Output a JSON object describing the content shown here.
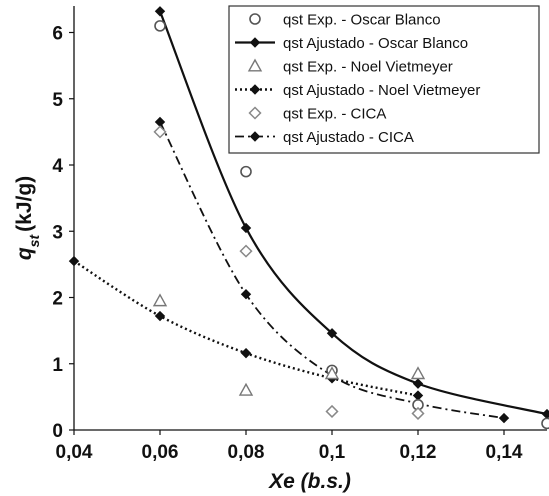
{
  "chart_data": {
    "type": "scatter",
    "xlabel": "Xe (b.s.)",
    "ylabel": "q_st (kJ/g)",
    "xlim": [
      0.04,
      0.15
    ],
    "ylim": [
      0,
      6.4
    ],
    "x_ticks": [
      0.04,
      0.06,
      0.08,
      0.1,
      0.12,
      0.14
    ],
    "x_tick_labels": [
      "0,04",
      "0,06",
      "0,08",
      "0,1",
      "0,12",
      "0,14"
    ],
    "y_ticks": [
      0,
      1,
      2,
      3,
      4,
      5,
      6
    ],
    "y_tick_labels": [
      "0",
      "1",
      "2",
      "3",
      "4",
      "5",
      "6"
    ],
    "grid": false,
    "legend_position": "top-right",
    "series": [
      {
        "name": "qst Exp. - Oscar Blanco",
        "kind": "points",
        "marker": "circle",
        "x": [
          0.06,
          0.08,
          0.1,
          0.12,
          0.15
        ],
        "y": [
          6.1,
          3.9,
          0.9,
          0.38,
          0.1
        ]
      },
      {
        "name": "qst Ajustado - Oscar Blanco",
        "kind": "line",
        "line_style": "solid",
        "marker": "diamond-filled",
        "x": [
          0.06,
          0.08,
          0.1,
          0.12,
          0.15
        ],
        "y": [
          6.32,
          3.05,
          1.46,
          0.7,
          0.24
        ]
      },
      {
        "name": "qst Exp. - Noel Vietmeyer",
        "kind": "points",
        "marker": "triangle",
        "x": [
          0.06,
          0.08,
          0.1,
          0.12
        ],
        "y": [
          1.95,
          0.6,
          0.85,
          0.85
        ]
      },
      {
        "name": "qst Ajustado - Noel Vietmeyer",
        "kind": "line",
        "line_style": "dotted",
        "marker": "diamond-filled",
        "x": [
          0.04,
          0.06,
          0.08,
          0.1,
          0.12
        ],
        "y": [
          2.55,
          1.72,
          1.16,
          0.78,
          0.52
        ]
      },
      {
        "name": "qst Exp. - CICA",
        "kind": "points",
        "marker": "diamond-open",
        "x": [
          0.06,
          0.08,
          0.1,
          0.12
        ],
        "y": [
          4.5,
          2.7,
          0.28,
          0.25
        ]
      },
      {
        "name": "qst Ajustado - CICA",
        "kind": "line",
        "line_style": "dashdot",
        "marker": "diamond-filled",
        "x": [
          0.06,
          0.08,
          0.1,
          0.12,
          0.14
        ],
        "y": [
          4.65,
          2.05,
          0.82,
          0.4,
          0.18
        ]
      }
    ]
  }
}
